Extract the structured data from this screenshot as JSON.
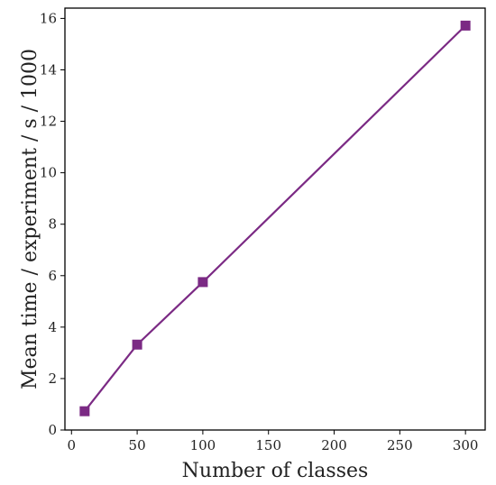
{
  "chart_data": {
    "type": "line",
    "title": "",
    "xlabel": "Number of classes",
    "ylabel": "Mean time / experiment / s / 1000",
    "xlim": [
      -5,
      315
    ],
    "ylim": [
      0,
      16.4
    ],
    "xticks": [
      0,
      50,
      100,
      150,
      200,
      250,
      300
    ],
    "yticks": [
      0,
      2,
      4,
      6,
      8,
      10,
      12,
      14,
      16
    ],
    "grid": false,
    "legend": "none",
    "series": [
      {
        "color": "#7b2a84",
        "marker": "square",
        "x": [
          10,
          50,
          100,
          300
        ],
        "y": [
          0.73,
          3.32,
          5.75,
          15.72
        ]
      }
    ]
  }
}
